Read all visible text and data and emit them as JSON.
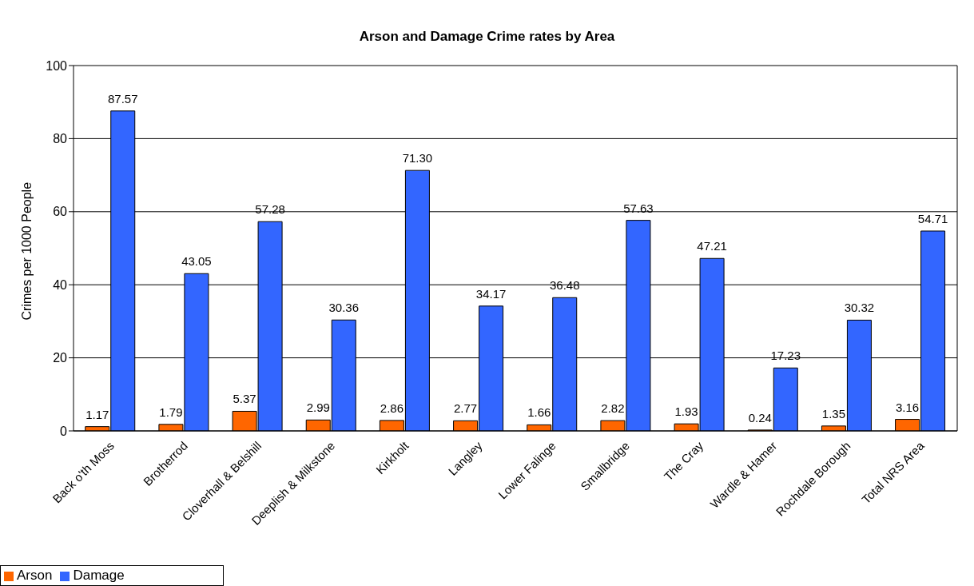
{
  "chart_data": {
    "type": "bar",
    "title": "Arson and Damage Crime rates by Area",
    "ylabel": "Crimes per 1000 People",
    "categories": [
      "Back o'th Moss",
      "Brotherrod",
      "Cloverhall & Belshill",
      "Deeplish & Milkstone",
      "Kirkholt",
      "Langley",
      "Lower Falinge",
      "Smallbridge",
      "The Cray",
      "Wardle & Hamer",
      "Rochdale Borough",
      "Total NRS Area"
    ],
    "series": [
      {
        "name": "Arson",
        "color": "#ff6600",
        "values": [
          1.17,
          1.79,
          5.37,
          2.99,
          2.86,
          2.77,
          1.66,
          2.82,
          1.93,
          0.24,
          1.35,
          3.16
        ],
        "value_labels": [
          "1.17",
          "1.79",
          "5.37",
          "2.99",
          "2.86",
          "2.77",
          "1.66",
          "2.82",
          "1.93",
          "0.24",
          "1.35",
          "3.16"
        ]
      },
      {
        "name": "Damage",
        "color": "#3366ff",
        "values": [
          87.57,
          43.05,
          57.28,
          30.36,
          71.3,
          34.17,
          36.48,
          57.63,
          47.21,
          17.23,
          30.32,
          54.71
        ],
        "value_labels": [
          "87.57",
          "43.05",
          "57.28",
          "30.36",
          "71.30",
          "34.17",
          "36.48",
          "57.63",
          "47.21",
          "17.23",
          "30.32",
          "54.71"
        ]
      }
    ],
    "ylim": [
      0,
      100
    ],
    "yticks": [
      0,
      20,
      40,
      60,
      80,
      100
    ],
    "grid": "y",
    "legend": "bottom left"
  }
}
